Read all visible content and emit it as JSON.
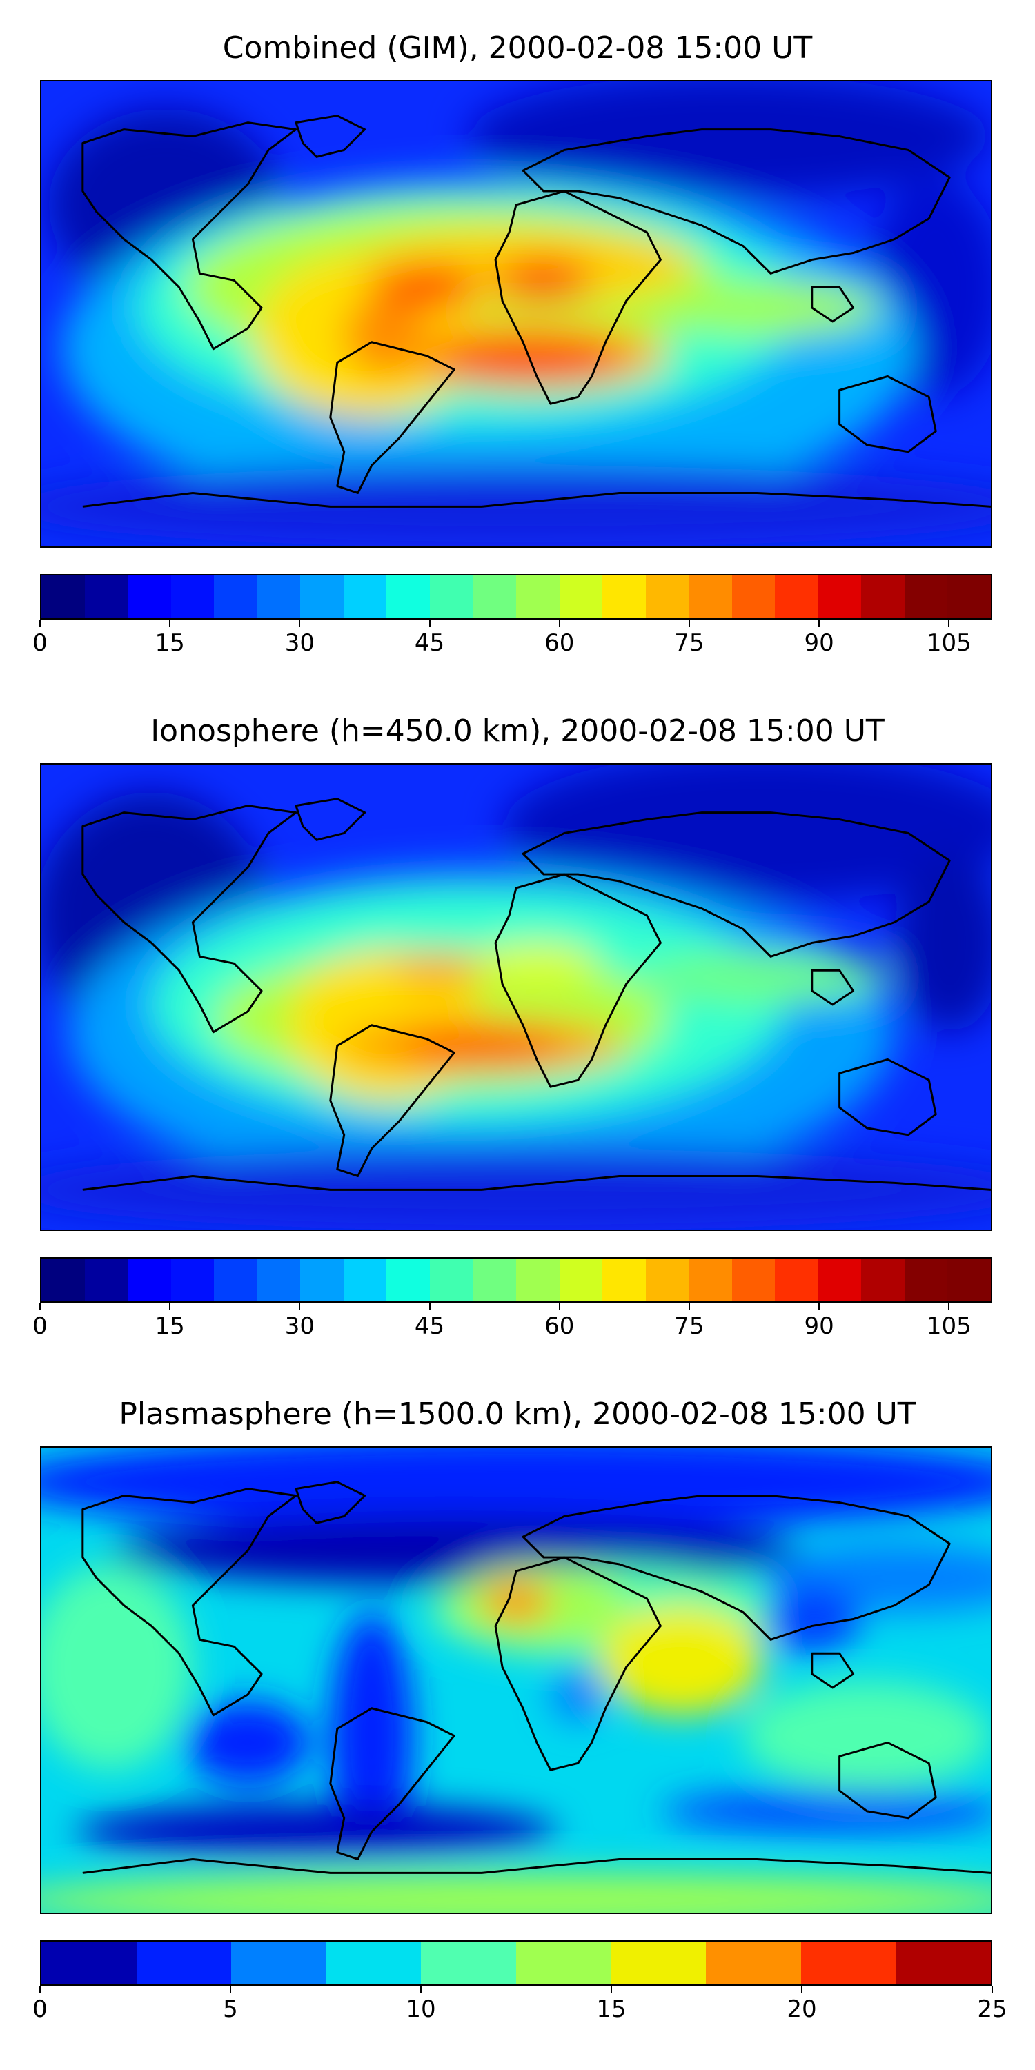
{
  "panels": [
    {
      "title": "Combined (GIM), 2000-02-08 15:00 UT",
      "colorbar": {
        "min": 0,
        "max": 110,
        "step": 5,
        "ticks": [
          "0",
          "15",
          "30",
          "45",
          "60",
          "75",
          "90",
          "105"
        ],
        "tick_values": [
          0,
          15,
          30,
          45,
          60,
          75,
          90,
          105
        ],
        "colors": [
          "#00007f",
          "#00009f",
          "#0000ff",
          "#0010ff",
          "#0040ff",
          "#0070ff",
          "#00a0ff",
          "#00d0ff",
          "#10ffe0",
          "#40ffb0",
          "#70ff80",
          "#a0ff50",
          "#d0ff20",
          "#ffe600",
          "#ffb800",
          "#ff8c00",
          "#ff5e00",
          "#ff3000",
          "#e00000",
          "#b00000",
          "#840000",
          "#7f0000"
        ]
      }
    },
    {
      "title": "Ionosphere  (h=450.0 km), 2000-02-08 15:00 UT",
      "colorbar": {
        "min": 0,
        "max": 110,
        "step": 5,
        "ticks": [
          "0",
          "15",
          "30",
          "45",
          "60",
          "75",
          "90",
          "105"
        ],
        "tick_values": [
          0,
          15,
          30,
          45,
          60,
          75,
          90,
          105
        ],
        "colors": [
          "#00007f",
          "#00009f",
          "#0000ff",
          "#0010ff",
          "#0040ff",
          "#0070ff",
          "#00a0ff",
          "#00d0ff",
          "#10ffe0",
          "#40ffb0",
          "#70ff80",
          "#a0ff50",
          "#d0ff20",
          "#ffe600",
          "#ffb800",
          "#ff8c00",
          "#ff5e00",
          "#ff3000",
          "#e00000",
          "#b00000",
          "#840000",
          "#7f0000"
        ]
      }
    },
    {
      "title": "Plasmasphere (h=1500.0 km), 2000-02-08 15:00 UT",
      "colorbar": {
        "min": 0,
        "max": 25,
        "step": 2.5,
        "ticks": [
          "0",
          "5",
          "10",
          "15",
          "20",
          "25"
        ],
        "tick_values": [
          0,
          5,
          10,
          15,
          20,
          25
        ],
        "colors": [
          "#0000b0",
          "#0020ff",
          "#0080ff",
          "#00e0f0",
          "#50ffb0",
          "#a0ff50",
          "#f0f000",
          "#ff9000",
          "#ff3000",
          "#b00000"
        ]
      }
    }
  ]
}
